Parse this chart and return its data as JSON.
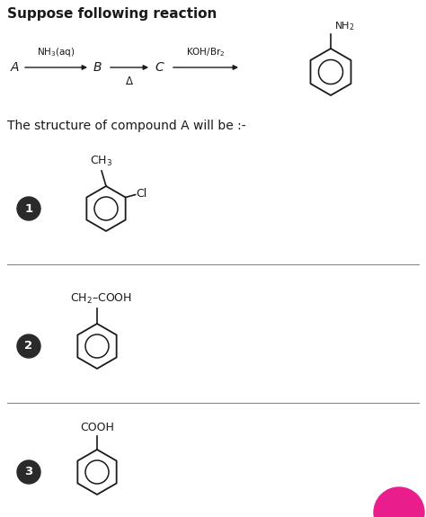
{
  "title": "Suppose following reaction",
  "bg_color": "#ffffff",
  "AB_reagent": "NH$_3$(aq)",
  "BC_reagent": "Δ",
  "CD_reagent": "KOH/Br$_2$",
  "product_group": "NH$_2$",
  "question": "The structure of compound A will be :-",
  "separator_color": "#888888",
  "circle_bg": "#2a2a2a",
  "circle_text_color": "#ffffff",
  "text_color": "#1a1a1a",
  "title_fs": 11,
  "body_fs": 10,
  "small_fs": 8.5,
  "chem_fs": 9
}
